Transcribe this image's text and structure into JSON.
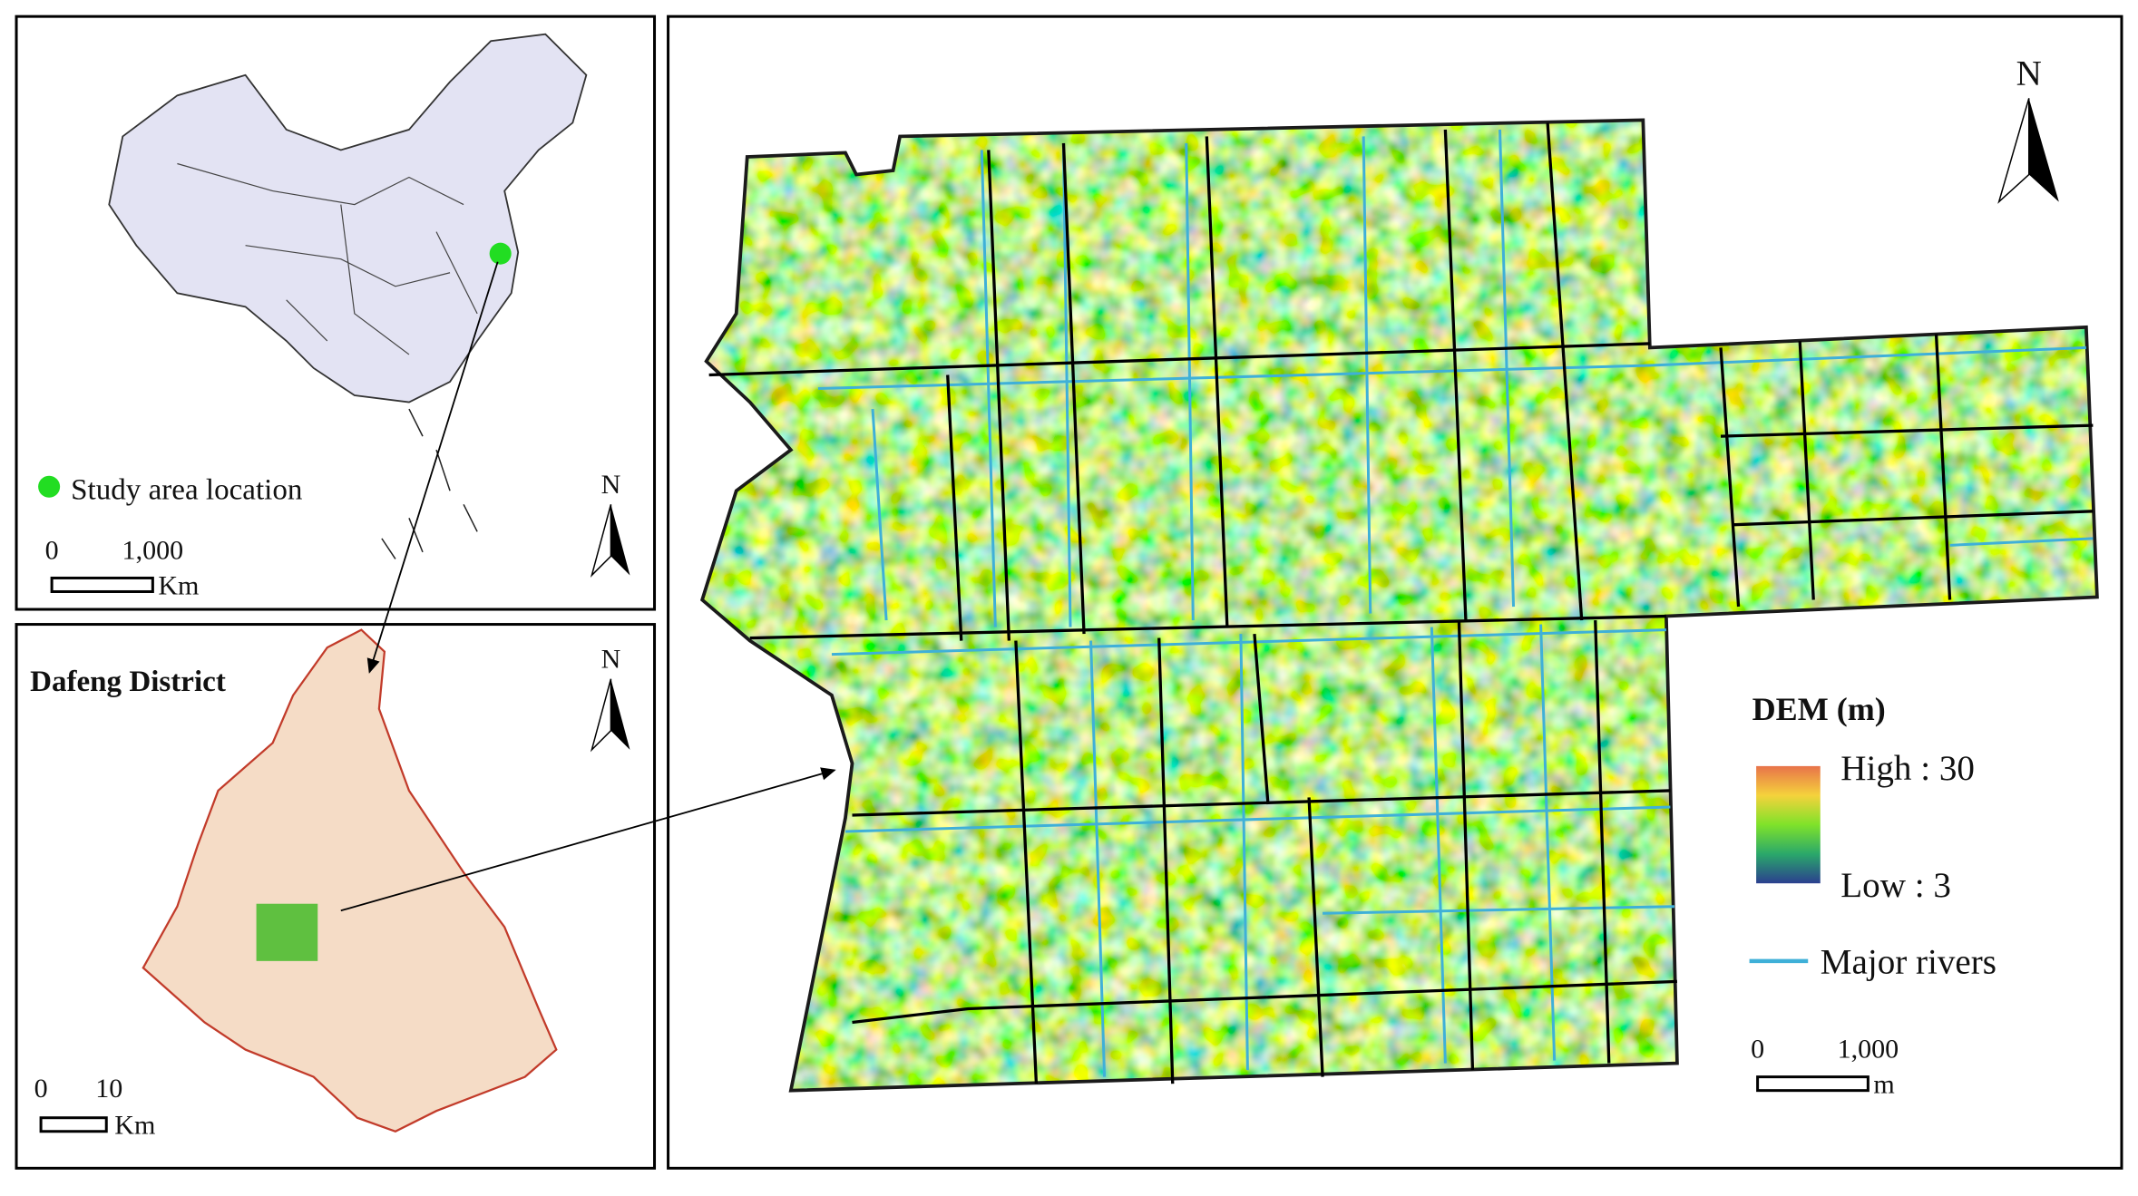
{
  "china_panel": {
    "legend_label": "Study area location",
    "north": "N",
    "scale": {
      "start": "0",
      "end": "1,000",
      "unit": "Km"
    }
  },
  "dafeng_panel": {
    "title": "Dafeng District",
    "north": "N",
    "scale": {
      "start": "0",
      "end": "10",
      "unit": "Km"
    }
  },
  "dem_panel": {
    "north": "N",
    "legend_title": "DEM (m)",
    "high_label": "High : 30",
    "low_label": "Low : 3",
    "rivers_label": "Major rivers",
    "scale": {
      "start": "0",
      "end": "1,000",
      "unit": "m"
    }
  }
}
